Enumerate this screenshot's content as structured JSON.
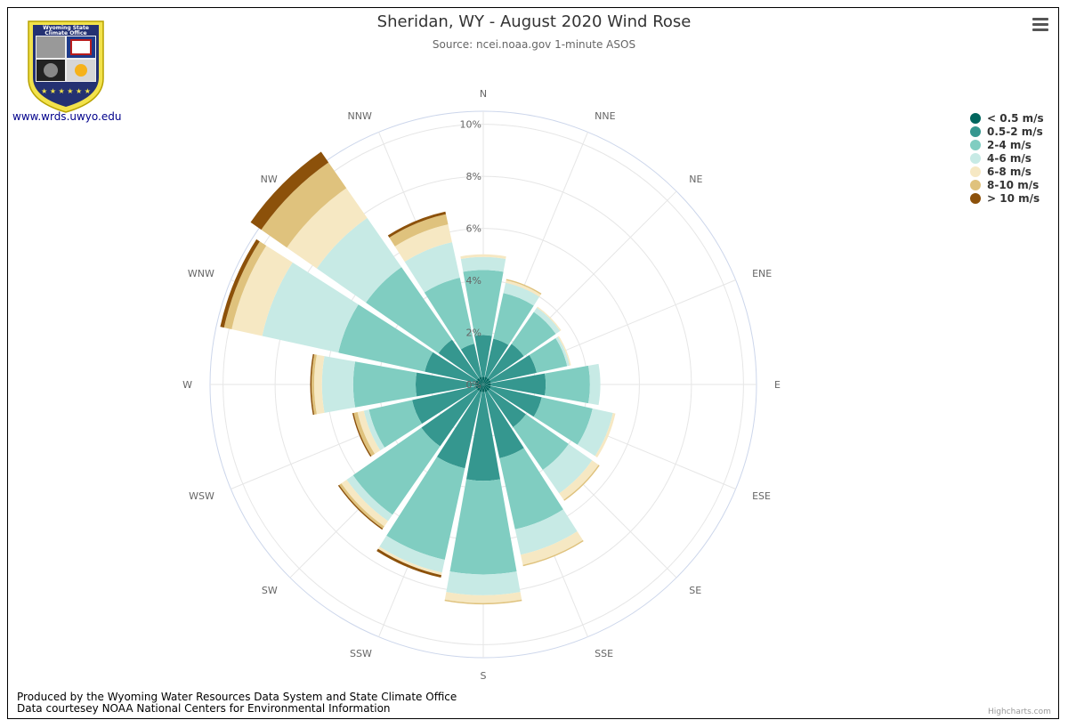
{
  "title": "Sheridan, WY - August 2020 Wind Rose",
  "subtitle": "Source: ncei.noaa.gov 1-minute ASOS",
  "logo": {
    "text_line1": "Wyoming State",
    "text_line2": "Climate Office"
  },
  "logo_link": "www.wrds.uwyo.edu",
  "footer": {
    "line1": "Produced by the Wyoming Water Resources Data System and State Climate Office",
    "line2": "Data courtesey NOAA National Centers for Environmental Information"
  },
  "credits": "Highcharts.com",
  "menu_icon": "hamburger-icon",
  "chart_data": {
    "type": "windrose",
    "title": "Sheridan, WY - August 2020 Wind Rose",
    "subtitle": "Source: ncei.noaa.gov 1-minute ASOS",
    "directions": [
      "N",
      "NNE",
      "NE",
      "ENE",
      "E",
      "ESE",
      "SE",
      "SSE",
      "S",
      "SSW",
      "SW",
      "WSW",
      "W",
      "WNW",
      "NW",
      "NNW"
    ],
    "yticks": [
      "0%",
      "2%",
      "4%",
      "6%",
      "8%",
      "10%"
    ],
    "ymax": 10.5,
    "stacked": true,
    "series": [
      {
        "name": "< 0.5 m/s",
        "color": "#01665e",
        "values": [
          0.3,
          0.3,
          0.3,
          0.3,
          0.3,
          0.3,
          0.3,
          0.3,
          0.3,
          0.3,
          0.3,
          0.3,
          0.3,
          0.3,
          0.3,
          0.3
        ]
      },
      {
        "name": "0.5-2 m/s",
        "color": "#35978f",
        "values": [
          1.6,
          1.5,
          1.6,
          1.8,
          2.1,
          2.0,
          1.7,
          2.6,
          3.4,
          3.0,
          2.6,
          2.5,
          2.3,
          2.0,
          1.8,
          1.3
        ]
      },
      {
        "name": "2-4 m/s",
        "color": "#80cdc1",
        "values": [
          2.5,
          1.8,
          1.5,
          1.2,
          1.7,
          2.0,
          2.0,
          2.8,
          3.6,
          3.6,
          3.2,
          1.7,
          2.4,
          3.4,
          3.4,
          2.6
        ]
      },
      {
        "name": "4-6 m/s",
        "color": "#c7eae5",
        "values": [
          0.5,
          0.4,
          0.2,
          0.1,
          0.4,
          0.8,
          1.1,
          1.0,
          0.8,
          0.5,
          0.3,
          0.2,
          1.2,
          3.0,
          2.3,
          1.4
        ]
      },
      {
        "name": "6-8 m/s",
        "color": "#f6e8c3",
        "values": [
          0.1,
          0.1,
          0.05,
          0.05,
          0,
          0.1,
          0.3,
          0.4,
          0.3,
          0.1,
          0.25,
          0.25,
          0.3,
          1.2,
          1.4,
          0.7
        ]
      },
      {
        "name": "8-10 m/s",
        "color": "#dfc27d",
        "values": [
          0,
          0.05,
          0,
          0,
          0,
          0,
          0.05,
          0.05,
          0.05,
          0,
          0.1,
          0.15,
          0.1,
          0.3,
          1.2,
          0.4
        ]
      },
      {
        "name": "> 10 m/s",
        "color": "#8c510a",
        "values": [
          0,
          0,
          0,
          0,
          0,
          0,
          0,
          0,
          0,
          0.1,
          0.05,
          0.05,
          0.05,
          0.15,
          0.5,
          0.1
        ]
      }
    ]
  }
}
